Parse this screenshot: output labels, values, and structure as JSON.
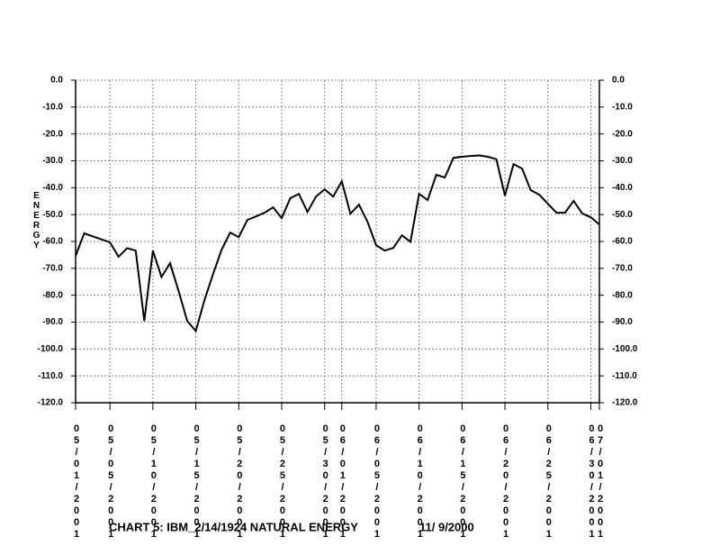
{
  "chart_data": {
    "type": "line",
    "title": "CHART 5: IBM_2/14/1924 NATURAL ENERGY",
    "subtitle": "11/ 9/2000",
    "y_label": "ENERGY",
    "x": [
      "05/01/2001",
      "05/02/2001",
      "05/05/2001",
      "05/06/2001",
      "05/07/2001",
      "05/08/2001",
      "05/09/2001",
      "05/10/2001",
      "05/11/2001",
      "05/12/2001",
      "05/13/2001",
      "05/14/2001",
      "05/15/2001",
      "05/16/2001",
      "05/17/2001",
      "05/18/2001",
      "05/19/2001",
      "05/20/2001",
      "05/21/2001",
      "05/22/2001",
      "05/23/2001",
      "05/24/2001",
      "05/25/2001",
      "05/26/2001",
      "05/27/2001",
      "05/28/2001",
      "05/29/2001",
      "05/30/2001",
      "05/31/2001",
      "06/01/2001",
      "06/02/2001",
      "06/03/2001",
      "06/04/2001",
      "06/05/2001",
      "06/06/2001",
      "06/07/2001",
      "06/08/2001",
      "06/09/2001",
      "06/10/2001",
      "06/11/2001",
      "06/12/2001",
      "06/13/2001",
      "06/14/2001",
      "06/15/2001",
      "06/16/2001",
      "06/17/2001",
      "06/18/2001",
      "06/19/2001",
      "06/20/2001",
      "06/21/2001",
      "06/22/2001",
      "06/23/2001",
      "06/24/2001",
      "06/25/2001",
      "06/26/2001",
      "06/27/2001",
      "06/28/2001",
      "06/29/2001",
      "06/30/2001",
      "07/01/2001"
    ],
    "series": [
      {
        "name": "ENERGY",
        "color": "#000000",
        "values": [
          -65.4,
          -57.0,
          -60.3,
          -65.7,
          -62.5,
          -63.4,
          -89.6,
          -63.4,
          -73.2,
          -68.1,
          -78.5,
          -89.6,
          -93.3,
          -81.9,
          -72.2,
          -63.1,
          -56.7,
          -58.4,
          -52.0,
          -50.7,
          -49.3,
          -47.3,
          -51.3,
          -43.9,
          -42.3,
          -49.0,
          -43.3,
          -40.6,
          -43.3,
          -37.6,
          -49.7,
          -46.3,
          -52.7,
          -61.4,
          -63.4,
          -62.4,
          -57.7,
          -60.1,
          -42.3,
          -44.6,
          -35.2,
          -36.2,
          -28.9,
          -28.5,
          -28.2,
          -28.0,
          -28.5,
          -29.4,
          -43.0,
          -31.2,
          -32.9,
          -40.9,
          -42.6,
          -46.0,
          -49.3,
          -49.3,
          -44.9,
          -49.6,
          -51.0,
          -53.7
        ]
      }
    ],
    "xlim": [
      "05/01/2001",
      "07/01/2001"
    ],
    "xticks": [
      "05/01/2001",
      "05/05/2001",
      "05/10/2001",
      "05/15/2001",
      "05/20/2001",
      "05/25/2001",
      "05/30/2001",
      "06/01/2001",
      "06/05/2001",
      "06/10/2001",
      "06/15/2001",
      "06/20/2001",
      "06/25/2001",
      "06/30/2001",
      "07/01/2001"
    ],
    "ylim": [
      -120,
      0
    ],
    "yticks": [
      {
        "value": 0,
        "label": "0.0"
      },
      {
        "value": -10,
        "label": "-10.0"
      },
      {
        "value": -20,
        "label": "-20.0"
      },
      {
        "value": -30,
        "label": "-30.0"
      },
      {
        "value": -40,
        "label": "-40.0"
      },
      {
        "value": -50,
        "label": "-50.0"
      },
      {
        "value": -60,
        "label": "-60.0"
      },
      {
        "value": -70,
        "label": "-70.0"
      },
      {
        "value": -80,
        "label": "-80.0"
      },
      {
        "value": -90,
        "label": "-90.0"
      },
      {
        "value": -100,
        "label": "-100.0"
      },
      {
        "value": -110,
        "label": "-110.0"
      },
      {
        "value": -120,
        "label": "-120.0"
      }
    ],
    "grid": true
  }
}
